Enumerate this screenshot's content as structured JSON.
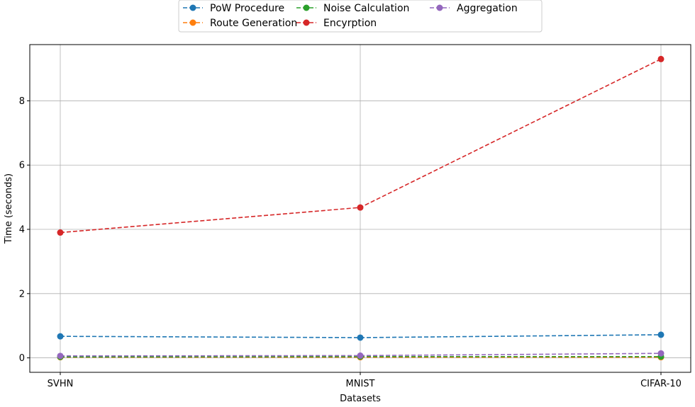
{
  "chart_data": {
    "type": "line",
    "categories": [
      "SVHN",
      "MNIST",
      "CIFAR-10"
    ],
    "xlabel": "Datasets",
    "ylabel": "Time (seconds)",
    "ylim": [
      -0.45,
      9.75
    ],
    "yticks": [
      0,
      2,
      4,
      6,
      8
    ],
    "grid": true,
    "line_style": "dashed",
    "marker": "circle",
    "legend_placement": "top-center",
    "series": [
      {
        "name": "PoW Procedure",
        "color": "#1f77b4",
        "values": [
          0.67,
          0.63,
          0.72
        ]
      },
      {
        "name": "Route Generation",
        "color": "#ff7f0e",
        "values": [
          0.02,
          0.02,
          0.02
        ]
      },
      {
        "name": "Noise Calculation",
        "color": "#2ca02c",
        "values": [
          0.03,
          0.04,
          0.04
        ]
      },
      {
        "name": "Encyrption",
        "color": "#d62728",
        "values": [
          3.9,
          4.68,
          9.3
        ]
      },
      {
        "name": "Aggregation",
        "color": "#9467bd",
        "values": [
          0.06,
          0.07,
          0.14
        ]
      }
    ]
  }
}
